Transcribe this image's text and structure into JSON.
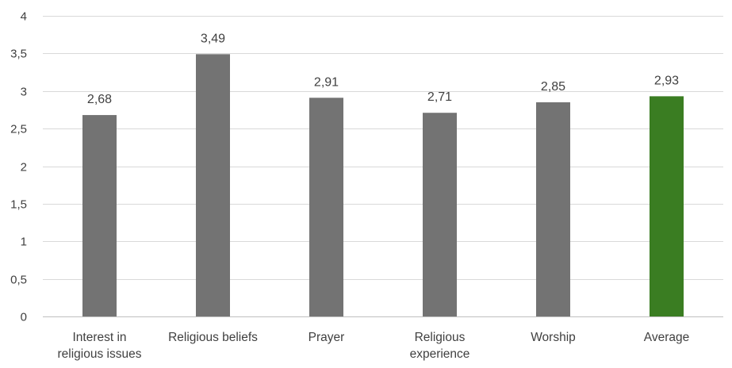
{
  "chart_data": {
    "type": "bar",
    "categories": [
      "Interest in religious issues",
      "Religious beliefs",
      "Prayer",
      "Religious experience",
      "Worship",
      "Average"
    ],
    "category_lines": [
      [
        "Interest in",
        "religious issues"
      ],
      [
        "Religious beliefs"
      ],
      [
        "Prayer"
      ],
      [
        "Religious",
        "experience"
      ],
      [
        "Worship"
      ],
      [
        "Average"
      ]
    ],
    "values": [
      2.68,
      3.49,
      2.91,
      2.71,
      2.85,
      2.93
    ],
    "data_labels": [
      "2,68",
      "3,49",
      "2,91",
      "2,71",
      "2,85",
      "2,93"
    ],
    "bar_colors": [
      "#737373",
      "#737373",
      "#737373",
      "#737373",
      "#737373",
      "#3a7d22"
    ],
    "ylim": [
      0,
      4
    ],
    "y_ticks": [
      0,
      0.5,
      1,
      1.5,
      2,
      2.5,
      3,
      3.5,
      4
    ],
    "y_tick_labels": [
      "0",
      "0,5",
      "1",
      "1,5",
      "2",
      "2,5",
      "3",
      "3,5",
      "4"
    ],
    "grid": true,
    "legend": "none",
    "title": "",
    "xlabel": "",
    "ylabel": ""
  }
}
